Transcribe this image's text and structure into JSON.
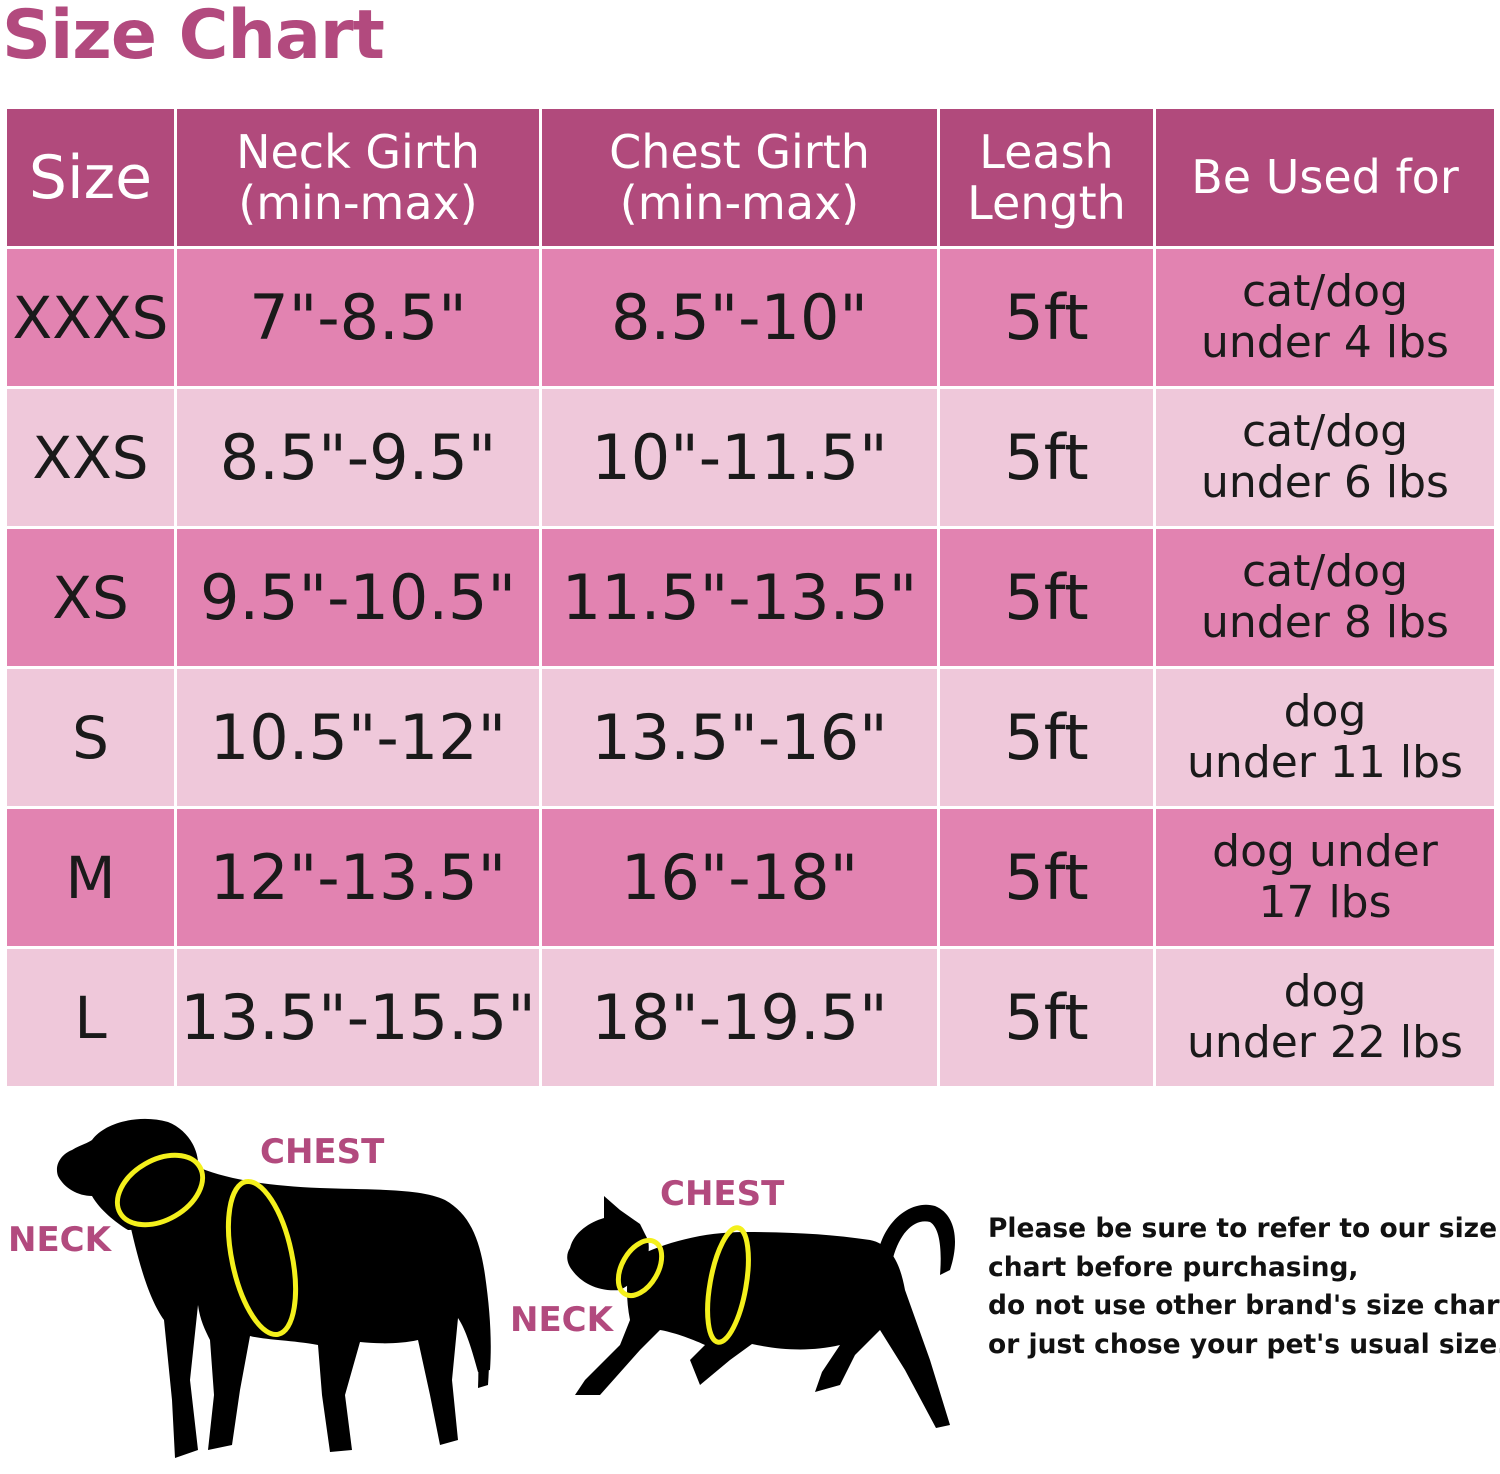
{
  "title": "Size Chart",
  "table": {
    "headers": {
      "size": "Size",
      "neck": [
        "Neck Girth",
        "(min-max)"
      ],
      "chest": [
        "Chest Girth",
        "(min-max)"
      ],
      "leash": [
        "Leash",
        "Length"
      ],
      "use": "Be Used for"
    },
    "rows": [
      {
        "size": "XXXS",
        "neck": "7\"-8.5\"",
        "chest": "8.5\"-10\"",
        "leash": "5ft",
        "use": [
          "cat/dog",
          "under 4 lbs"
        ]
      },
      {
        "size": "XXS",
        "neck": "8.5\"-9.5\"",
        "chest": "10\"-11.5\"",
        "leash": "5ft",
        "use": [
          "cat/dog",
          "under 6 lbs"
        ]
      },
      {
        "size": "XS",
        "neck": "9.5\"-10.5\"",
        "chest": "11.5\"-13.5\"",
        "leash": "5ft",
        "use": [
          "cat/dog",
          "under 8 lbs"
        ]
      },
      {
        "size": "S",
        "neck": "10.5\"-12\"",
        "chest": "13.5\"-16\"",
        "leash": "5ft",
        "use": [
          "dog",
          "under 11 lbs"
        ]
      },
      {
        "size": "M",
        "neck": "12\"-13.5\"",
        "chest": "16\"-18\"",
        "leash": "5ft",
        "use": [
          "dog under",
          "17 lbs"
        ]
      },
      {
        "size": "L",
        "neck": "13.5\"-15.5\"",
        "chest": "18\"-19.5\"",
        "leash": "5ft",
        "use": [
          "dog",
          "under 22 lbs"
        ]
      }
    ]
  },
  "diagram": {
    "dog": {
      "neck_label": "NECK",
      "chest_label": "CHEST"
    },
    "cat": {
      "neck_label": "NECK",
      "chest_label": "CHEST"
    }
  },
  "note": [
    "Please be sure to refer to our size",
    "chart before purchasing,",
    "do not use other brand's size chart",
    "or just chose your pet's usual size."
  ],
  "colors": {
    "header": "#b14a7c",
    "row_dark": "#e283b1",
    "row_light": "#efc8da",
    "title": "#b24a7e",
    "ring": "#f4f01c"
  }
}
